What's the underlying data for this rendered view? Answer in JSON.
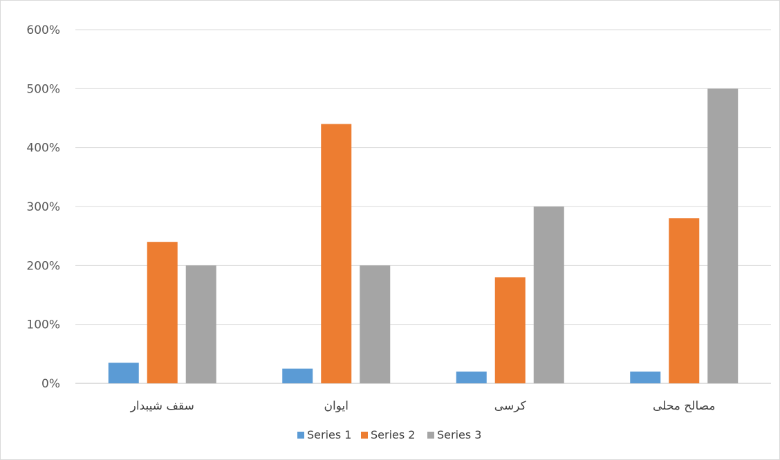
{
  "chart_data": {
    "type": "bar",
    "categories": [
      "سقف شیبدار",
      "ایوان",
      "کرسی",
      "مصالح محلی"
    ],
    "series": [
      {
        "name": "Series 1",
        "values": [
          35,
          25,
          20,
          20
        ],
        "color": "#5b9bd5"
      },
      {
        "name": "Series 2",
        "values": [
          240,
          440,
          180,
          280
        ],
        "color": "#ed7d31"
      },
      {
        "name": "Series 3",
        "values": [
          200,
          200,
          300,
          500
        ],
        "color": "#a5a5a5"
      }
    ],
    "yticks": [
      "0%",
      "100%",
      "200%",
      "300%",
      "400%",
      "500%",
      "600%"
    ],
    "ylim": [
      0,
      600
    ],
    "yunit": "%",
    "grid": true,
    "legend_position": "bottom"
  }
}
